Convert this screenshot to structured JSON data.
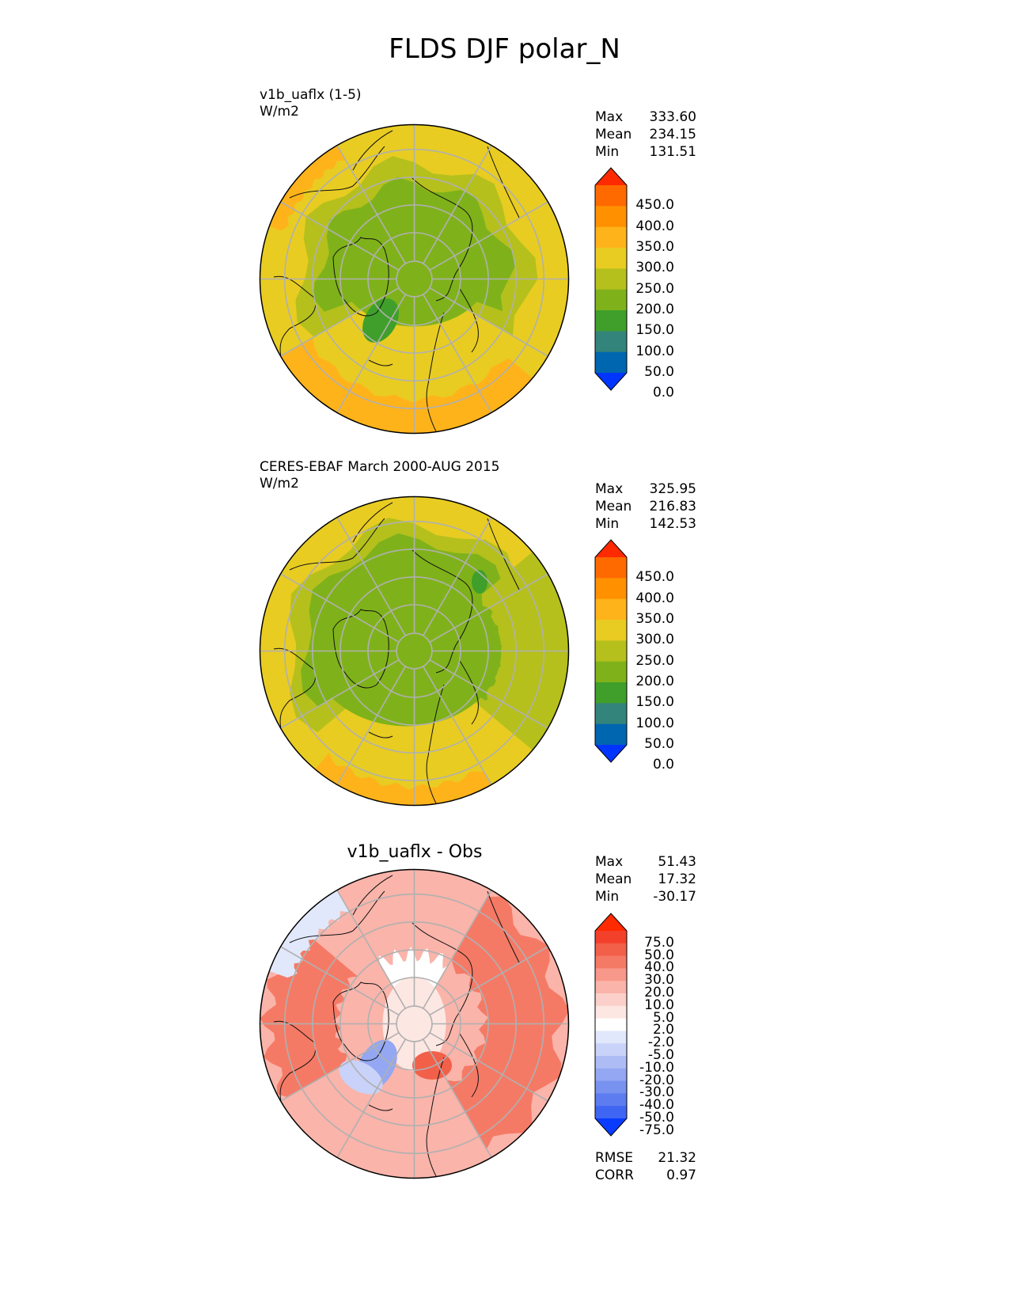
{
  "title": "FLDS DJF polar_N",
  "panels": [
    {
      "label_line1": "v1b_uaflx (1-5)",
      "label_line2": "W/m2",
      "stats": [
        {
          "name": "Max",
          "value": "333.60"
        },
        {
          "name": "Mean",
          "value": "234.15"
        },
        {
          "name": "Min",
          "value": "131.51"
        }
      ],
      "colorbar_ticks": [
        "450.0",
        "400.0",
        "350.0",
        "300.0",
        "250.0",
        "200.0",
        "150.0",
        "100.0",
        "50.0",
        "0.0"
      ]
    },
    {
      "label_line1": "CERES-EBAF March 2000-AUG 2015",
      "label_line2": "W/m2",
      "stats": [
        {
          "name": "Max",
          "value": "325.95"
        },
        {
          "name": "Mean",
          "value": "216.83"
        },
        {
          "name": "Min",
          "value": "142.53"
        }
      ],
      "colorbar_ticks": [
        "450.0",
        "400.0",
        "350.0",
        "300.0",
        "250.0",
        "200.0",
        "150.0",
        "100.0",
        "50.0",
        "0.0"
      ]
    },
    {
      "center_title": "v1b_uaflx - Obs",
      "stats": [
        {
          "name": "Max",
          "value": "51.43"
        },
        {
          "name": "Mean",
          "value": "17.32"
        },
        {
          "name": "Min",
          "value": "-30.17"
        }
      ],
      "colorbar_ticks": [
        "75.0",
        "50.0",
        "40.0",
        "30.0",
        "20.0",
        "10.0",
        "5.0",
        "2.0",
        "-2.0",
        "-5.0",
        "-10.0",
        "-20.0",
        "-30.0",
        "-40.0",
        "-50.0",
        "-75.0"
      ],
      "metrics": [
        {
          "name": "RMSE",
          "value": "21.32"
        },
        {
          "name": "CORR",
          "value": "0.97"
        }
      ]
    }
  ],
  "colors": {
    "abs_scale": [
      "#ff2a00",
      "#ff6a00",
      "#ff9100",
      "#ffb31a",
      "#e8cc22",
      "#b5c01c",
      "#7fb21a",
      "#3f9f2a",
      "#33847a",
      "#0066b0",
      "#0035ff"
    ],
    "diff_scale": [
      "#ff2a00",
      "#f2402a",
      "#f2604a",
      "#f57a66",
      "#f8988a",
      "#fab4aa",
      "#fcd0ca",
      "#fde7e3",
      "#ffffff",
      "#e2e8fb",
      "#c9d2f8",
      "#aebcf5",
      "#93a7f2",
      "#7892ef",
      "#5c7cf0",
      "#3f65f3",
      "#0a3cff"
    ]
  }
}
